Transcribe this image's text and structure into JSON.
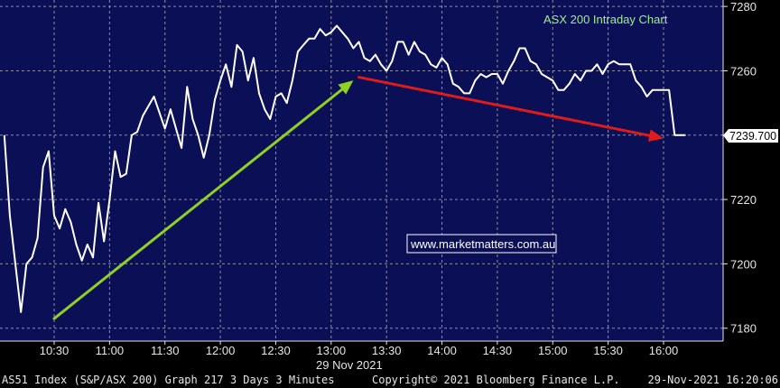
{
  "chart_data": {
    "type": "line",
    "title": "ASX 200 Intraday Chart",
    "date_label": "29 Nov 2021",
    "watermark": "www.marketmatters.com.au",
    "last_value_label": "7239.700",
    "x_ticks": [
      "10:30",
      "11:00",
      "11:30",
      "12:00",
      "12:30",
      "13:00",
      "13:30",
      "14:00",
      "14:30",
      "15:00",
      "15:30",
      "16:00"
    ],
    "y_ticks": [
      7180,
      7200,
      7220,
      7240,
      7260,
      7280
    ],
    "ylim": [
      7176,
      7282
    ],
    "grid": true,
    "series": [
      {
        "values": [
          [
            "10:03",
            7240
          ],
          [
            "10:06",
            7215
          ],
          [
            "10:09",
            7200
          ],
          [
            "10:12",
            7185
          ],
          [
            "10:15",
            7200
          ],
          [
            "10:18",
            7202
          ],
          [
            "10:21",
            7208
          ],
          [
            "10:24",
            7230
          ],
          [
            "10:27",
            7235
          ],
          [
            "10:30",
            7215
          ],
          [
            "10:33",
            7211
          ],
          [
            "10:36",
            7217
          ],
          [
            "10:39",
            7213
          ],
          [
            "10:42",
            7206
          ],
          [
            "10:45",
            7201
          ],
          [
            "10:48",
            7206
          ],
          [
            "10:51",
            7202
          ],
          [
            "10:54",
            7219
          ],
          [
            "10:57",
            7207
          ],
          [
            "11:00",
            7220
          ],
          [
            "11:03",
            7235
          ],
          [
            "11:06",
            7227
          ],
          [
            "11:09",
            7228
          ],
          [
            "11:12",
            7240
          ],
          [
            "11:15",
            7241
          ],
          [
            "11:18",
            7246
          ],
          [
            "11:21",
            7249
          ],
          [
            "11:24",
            7252
          ],
          [
            "11:27",
            7247
          ],
          [
            "11:30",
            7242
          ],
          [
            "11:33",
            7248
          ],
          [
            "11:36",
            7242
          ],
          [
            "11:39",
            7236
          ],
          [
            "11:42",
            7255
          ],
          [
            "11:45",
            7245
          ],
          [
            "11:48",
            7240
          ],
          [
            "11:51",
            7233
          ],
          [
            "11:54",
            7240
          ],
          [
            "11:57",
            7251
          ],
          [
            "12:00",
            7257
          ],
          [
            "12:03",
            7262
          ],
          [
            "12:06",
            7255
          ],
          [
            "12:09",
            7268
          ],
          [
            "12:12",
            7266
          ],
          [
            "12:15",
            7257
          ],
          [
            "12:18",
            7264
          ],
          [
            "12:21",
            7253
          ],
          [
            "12:24",
            7248
          ],
          [
            "12:27",
            7245
          ],
          [
            "12:30",
            7252
          ],
          [
            "12:33",
            7253
          ],
          [
            "12:36",
            7250
          ],
          [
            "12:39",
            7257
          ],
          [
            "12:42",
            7266
          ],
          [
            "12:45",
            7268
          ],
          [
            "12:48",
            7270
          ],
          [
            "12:51",
            7270
          ],
          [
            "12:54",
            7273
          ],
          [
            "12:57",
            7271
          ],
          [
            "13:00",
            7272
          ],
          [
            "13:03",
            7274
          ],
          [
            "13:06",
            7272
          ],
          [
            "13:09",
            7270
          ],
          [
            "13:12",
            7267
          ],
          [
            "13:15",
            7269
          ],
          [
            "13:18",
            7264
          ],
          [
            "13:21",
            7263
          ],
          [
            "13:24",
            7265
          ],
          [
            "13:27",
            7262
          ],
          [
            "13:30",
            7260
          ],
          [
            "13:33",
            7263
          ],
          [
            "13:36",
            7269
          ],
          [
            "13:39",
            7269
          ],
          [
            "13:42",
            7265
          ],
          [
            "13:45",
            7269
          ],
          [
            "13:48",
            7266
          ],
          [
            "13:51",
            7265
          ],
          [
            "13:54",
            7262
          ],
          [
            "13:57",
            7261
          ],
          [
            "14:00",
            7264
          ],
          [
            "14:03",
            7262
          ],
          [
            "14:06",
            7256
          ],
          [
            "14:09",
            7255
          ],
          [
            "14:12",
            7253
          ],
          [
            "14:15",
            7253
          ],
          [
            "14:18",
            7257
          ],
          [
            "14:21",
            7259
          ],
          [
            "14:24",
            7258
          ],
          [
            "14:27",
            7259
          ],
          [
            "14:30",
            7259
          ],
          [
            "14:33",
            7256
          ],
          [
            "14:36",
            7260
          ],
          [
            "14:39",
            7263
          ],
          [
            "14:42",
            7267
          ],
          [
            "14:45",
            7267
          ],
          [
            "14:48",
            7263
          ],
          [
            "14:51",
            7262
          ],
          [
            "14:54",
            7259
          ],
          [
            "14:57",
            7258
          ],
          [
            "15:00",
            7257
          ],
          [
            "15:03",
            7254
          ],
          [
            "15:06",
            7254
          ],
          [
            "15:09",
            7256
          ],
          [
            "15:12",
            7259
          ],
          [
            "15:15",
            7257
          ],
          [
            "15:18",
            7260
          ],
          [
            "15:21",
            7260
          ],
          [
            "15:24",
            7262
          ],
          [
            "15:27",
            7259
          ],
          [
            "15:30",
            7262
          ],
          [
            "15:33",
            7263
          ],
          [
            "15:36",
            7262
          ],
          [
            "15:39",
            7262
          ],
          [
            "15:42",
            7262
          ],
          [
            "15:45",
            7257
          ],
          [
            "15:48",
            7255
          ],
          [
            "15:51",
            7252
          ],
          [
            "15:54",
            7254
          ],
          [
            "15:57",
            7254
          ],
          [
            "16:00",
            7254
          ],
          [
            "16:03",
            7254
          ],
          [
            "16:06",
            7240
          ],
          [
            "16:09",
            7240
          ],
          [
            "16:12",
            7240
          ]
        ]
      }
    ],
    "annotations": [
      {
        "type": "arrow",
        "color": "#8fd21f",
        "from": [
          "10:30",
          7183
        ],
        "to": [
          "13:12",
          7257
        ]
      },
      {
        "type": "arrow",
        "color": "#e01b1b",
        "from": [
          "13:15",
          7258
        ],
        "to": [
          "16:00",
          7239
        ]
      }
    ]
  },
  "footer": {
    "left": "AS51 Index (S&P/ASX 200) Graph 217 3 Days 3 Minutes",
    "center": "Copyright© 2021 Bloomberg Finance L.P.",
    "right": "29-Nov-2021 16:20:06"
  },
  "colors": {
    "background": "#0b0f55",
    "grid": "#8a8fa8",
    "line": "#ffffff"
  }
}
